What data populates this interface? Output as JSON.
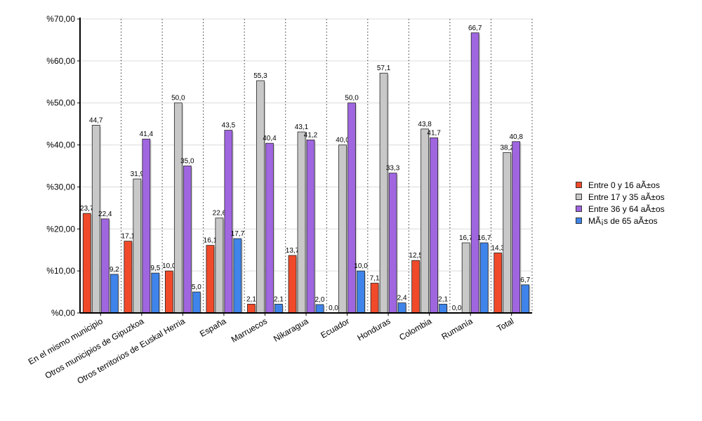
{
  "chart_data": {
    "type": "bar",
    "categories": [
      "En el mismo municipio",
      "Otros municipios de Gipuzkoa",
      "Otros territorios de Euskal Herria",
      "España",
      "Marruecos",
      "Nikaragua",
      "Ecuador",
      "Honduras",
      "Colombia",
      "Rumanía",
      "Total"
    ],
    "series": [
      {
        "name": "Entre 0 y 16 aÃ±os",
        "color": "#f04a2a",
        "values": [
          23.7,
          17.1,
          10.0,
          16.1,
          2.1,
          13.7,
          0.0,
          7.1,
          12.5,
          0.0,
          14.3
        ],
        "labels": [
          "23,7",
          "17,1",
          "10,0",
          "16,1",
          "2,1",
          "13,7",
          "0,0",
          "7,1",
          "12,5",
          "0,0",
          "14,3"
        ]
      },
      {
        "name": "Entre 17 y 35 aÃ±os",
        "color": "#c8c8c8",
        "values": [
          44.7,
          31.9,
          50.0,
          22.6,
          55.3,
          43.1,
          40.0,
          57.1,
          43.8,
          16.7,
          38.2
        ],
        "labels": [
          "44,7",
          "31,9",
          "50,0",
          "22,6",
          "55,3",
          "43,1",
          "40,0",
          "57,1",
          "43,8",
          "16,7",
          "38,2"
        ]
      },
      {
        "name": "Entre 36 y 64 aÃ±os",
        "color": "#a066e0",
        "values": [
          22.4,
          41.4,
          35.0,
          43.5,
          40.4,
          41.2,
          50.0,
          33.3,
          41.7,
          66.7,
          40.8
        ],
        "labels": [
          "22,4",
          "41,4",
          "35,0",
          "43,5",
          "40,4",
          "41,2",
          "50,0",
          "33,3",
          "41,7",
          "66,7",
          "40,8"
        ]
      },
      {
        "name": "MÃ¡s de 65 aÃ±os",
        "color": "#3f84ea",
        "values": [
          9.2,
          9.5,
          5.0,
          17.7,
          2.1,
          2.0,
          10.0,
          2.4,
          2.1,
          16.7,
          6.7
        ],
        "labels": [
          "9,2",
          "9,5",
          "5,0",
          "17,7",
          "2,1",
          "2,0",
          "10,0",
          "2,4",
          "2,1",
          "16,7",
          "6,7"
        ]
      }
    ],
    "ylim": [
      0,
      70
    ],
    "yticks": [
      0,
      10,
      20,
      30,
      40,
      50,
      60,
      70
    ],
    "ytick_labels": [
      "%0,00",
      "%10,00",
      "%20,00",
      "%30,00",
      "%40,00",
      "%50,00",
      "%60,00",
      "%70,00"
    ],
    "xlabel": "",
    "ylabel": "",
    "title": "",
    "grid": {
      "horizontal": "solid light gray",
      "vertical": "dotted between categories"
    },
    "legend_position": "right"
  }
}
